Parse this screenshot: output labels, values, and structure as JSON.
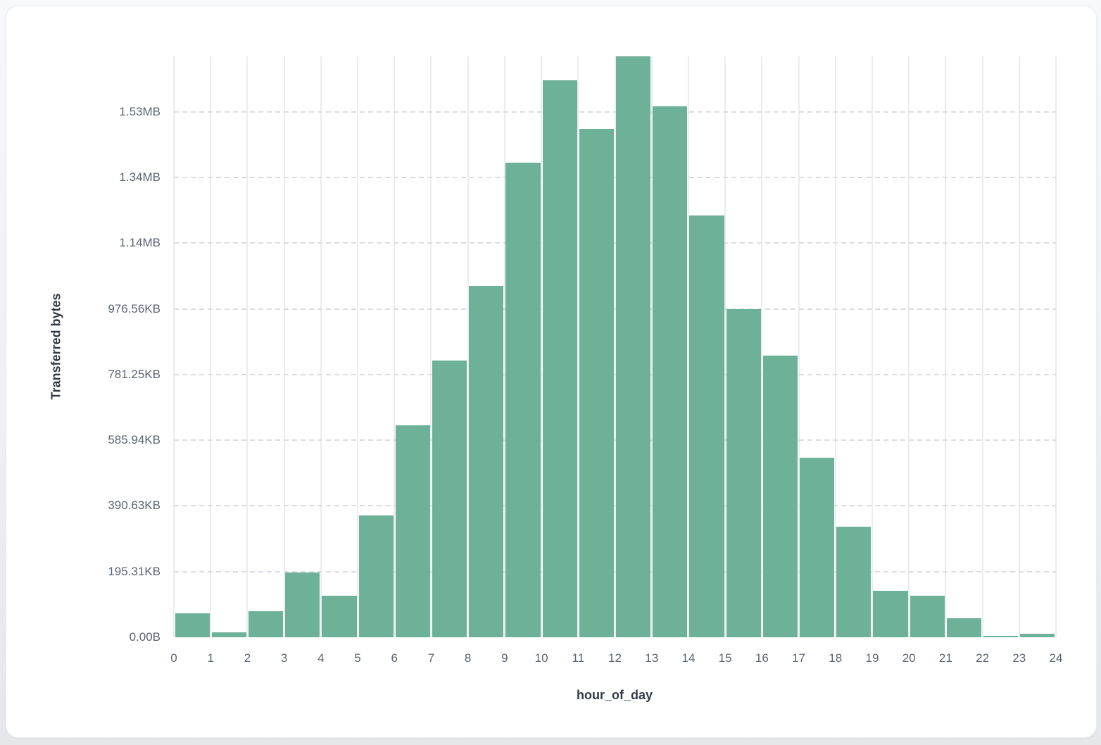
{
  "theme": {
    "page_background": "#eef0f3",
    "card_background": "#ffffff",
    "bar_color": "#6eb199",
    "vertical_grid_color": "#eaecf0",
    "dashed_grid_color": "#d9dde3",
    "tick_label_color": "#5c6472",
    "axis_title_color": "#333a46"
  },
  "chart_data": {
    "type": "bar",
    "subtype": "histogram",
    "title": "",
    "xlabel": "hour_of_day",
    "ylabel": "Transferred bytes",
    "bin_start_hours": [
      0,
      1,
      2,
      3,
      4,
      5,
      6,
      7,
      8,
      9,
      10,
      11,
      12,
      13,
      14,
      15,
      16,
      17,
      18,
      19,
      20,
      21,
      22,
      23
    ],
    "values_bytes": [
      72900,
      15000,
      79300,
      197200,
      126500,
      370900,
      645200,
      842400,
      1069700,
      1444800,
      1695600,
      1547700,
      1768500,
      1616300,
      1284100,
      998000,
      857500,
      546700,
      336600,
      141500,
      126500,
      57900,
      4300,
      10700
    ],
    "x_tick_labels": [
      "0",
      "1",
      "2",
      "3",
      "4",
      "5",
      "6",
      "7",
      "8",
      "9",
      "10",
      "11",
      "12",
      "13",
      "14",
      "15",
      "16",
      "17",
      "18",
      "19",
      "20",
      "21",
      "22",
      "23",
      "24"
    ],
    "y_ticks": [
      {
        "bytes": 0,
        "label": "0.00B"
      },
      {
        "bytes": 200000,
        "label": "195.31KB"
      },
      {
        "bytes": 400000,
        "label": "390.63KB"
      },
      {
        "bytes": 600000,
        "label": "585.94KB"
      },
      {
        "bytes": 800000,
        "label": "781.25KB"
      },
      {
        "bytes": 1000000,
        "label": "976.56KB"
      },
      {
        "bytes": 1200000,
        "label": "1.14MB"
      },
      {
        "bytes": 1400000,
        "label": "1.34MB"
      },
      {
        "bytes": 1600000,
        "label": "1.53MB"
      }
    ],
    "xlim": [
      0,
      24
    ],
    "ylim_bytes": [
      0,
      1768500
    ],
    "grid": {
      "vertical": "solid",
      "horizontal": "dashed"
    },
    "legend": null
  }
}
